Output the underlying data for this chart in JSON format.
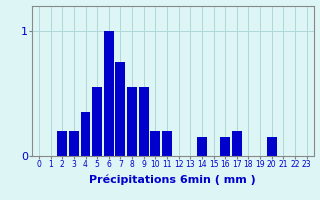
{
  "categories": [
    0,
    1,
    2,
    3,
    4,
    5,
    6,
    7,
    8,
    9,
    10,
    11,
    12,
    13,
    14,
    15,
    16,
    17,
    18,
    19,
    20,
    21,
    22,
    23
  ],
  "values": [
    0.0,
    0.0,
    0.2,
    0.2,
    0.35,
    0.55,
    1.0,
    0.75,
    0.55,
    0.55,
    0.2,
    0.2,
    0.0,
    0.0,
    0.15,
    0.0,
    0.15,
    0.2,
    0.0,
    0.0,
    0.15,
    0.0,
    0.0,
    0.0
  ],
  "bar_color": "#0000cc",
  "background_color": "#ddf5f5",
  "grid_color": "#b0d8d8",
  "xlabel": "Précipitations 6min ( mm )",
  "yticks": [
    0,
    1
  ],
  "ylim": [
    0,
    1.2
  ],
  "xlim": [
    -0.6,
    23.6
  ],
  "xlabel_fontsize": 8,
  "ytick_fontsize": 8,
  "xtick_fontsize": 5.5
}
